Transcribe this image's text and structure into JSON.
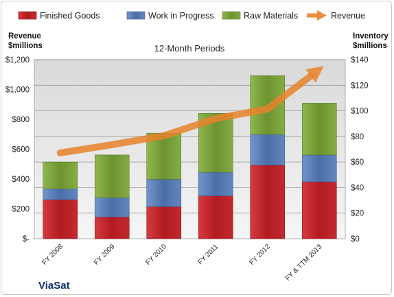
{
  "chart_data": {
    "type": "bar",
    "stacked": true,
    "subtitle": "12-Month Periods",
    "categories": [
      "FY 2008",
      "FY 2009",
      "FY 2010",
      "FY 2011",
      "FY 2012",
      "FY & TTM 2013"
    ],
    "series": [
      {
        "name": "Finished Goods",
        "axis": "right",
        "color": "#c0242a",
        "values": [
          30.5,
          17,
          25,
          33.5,
          57.5,
          44.5
        ]
      },
      {
        "name": "Work in Progress",
        "axis": "right",
        "color": "#5b7fb8",
        "values": [
          8.5,
          15,
          21.5,
          18.5,
          24,
          21
        ]
      },
      {
        "name": "Raw Materials",
        "axis": "right",
        "color": "#7fa43e",
        "values": [
          21,
          33.5,
          36,
          46,
          46,
          40.5
        ]
      },
      {
        "name": "Revenue",
        "axis": "left",
        "type": "line",
        "color": "#e8822a",
        "values": [
          575,
          630,
          690,
          805,
          870,
          1135
        ]
      }
    ],
    "left_axis": {
      "label_line1": "Revenue",
      "label_line2": "$millions",
      "ylim": [
        0,
        1200
      ],
      "ticks": [
        0,
        200,
        400,
        600,
        800,
        1000,
        1200
      ],
      "tick_labels": [
        "$-",
        "$200",
        "$400",
        "$600",
        "$800",
        "$1,000",
        "$1,200"
      ]
    },
    "right_axis": {
      "label_line1": "Inventory",
      "label_line2": "$millions",
      "ylim": [
        0,
        140
      ],
      "ticks": [
        0,
        20,
        40,
        60,
        80,
        100,
        120,
        140
      ],
      "tick_labels": [
        "$0",
        "$20",
        "$40",
        "$60",
        "$80",
        "$100",
        "$120",
        "$140"
      ]
    },
    "legend_position": "top",
    "grid": true
  },
  "brand": {
    "name": "ViaSat"
  }
}
